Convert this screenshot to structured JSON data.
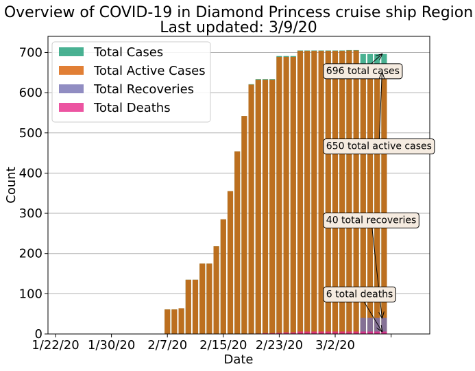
{
  "chart_data": {
    "type": "bar",
    "title": "Overview of COVID-19 in Diamond Princess cruise ship Region",
    "subtitle": "Last updated: 3/9/20",
    "xlabel": "Date",
    "ylabel": "Count",
    "ylim": [
      0,
      740
    ],
    "yticks": [
      0,
      100,
      200,
      300,
      400,
      500,
      600,
      700
    ],
    "grid": "horizontal",
    "legend_position": "top-left",
    "x_tick_labels": [
      "1/22/20",
      "1/30/20",
      "2/7/20",
      "2/15/20",
      "2/23/20",
      "3/2/20"
    ],
    "start_date": "1/22/20",
    "categories": [
      "1/22/20",
      "1/23/20",
      "1/24/20",
      "1/25/20",
      "1/26/20",
      "1/27/20",
      "1/28/20",
      "1/29/20",
      "1/30/20",
      "1/31/20",
      "2/1/20",
      "2/2/20",
      "2/3/20",
      "2/4/20",
      "2/5/20",
      "2/6/20",
      "2/7/20",
      "2/8/20",
      "2/9/20",
      "2/10/20",
      "2/11/20",
      "2/12/20",
      "2/13/20",
      "2/14/20",
      "2/15/20",
      "2/16/20",
      "2/17/20",
      "2/18/20",
      "2/19/20",
      "2/20/20",
      "2/21/20",
      "2/22/20",
      "2/23/20",
      "2/24/20",
      "2/25/20",
      "2/26/20",
      "2/27/20",
      "2/28/20",
      "2/29/20",
      "3/1/20",
      "3/2/20",
      "3/3/20",
      "3/4/20",
      "3/5/20",
      "3/6/20",
      "3/7/20",
      "3/8/20",
      "3/9/20"
    ],
    "series": [
      {
        "name": "Total Cases",
        "color": "#1b9e77",
        "values": [
          0,
          0,
          0,
          0,
          0,
          0,
          0,
          0,
          0,
          0,
          0,
          0,
          0,
          0,
          0,
          0,
          61,
          61,
          64,
          135,
          135,
          175,
          175,
          218,
          285,
          355,
          454,
          542,
          621,
          634,
          634,
          634,
          691,
          691,
          691,
          705,
          705,
          705,
          705,
          705,
          705,
          705,
          706,
          706,
          696,
          696,
          696,
          696
        ]
      },
      {
        "name": "Total Active Cases",
        "color": "#d95f02",
        "values": [
          0,
          0,
          0,
          0,
          0,
          0,
          0,
          0,
          0,
          0,
          0,
          0,
          0,
          0,
          0,
          0,
          61,
          61,
          64,
          135,
          135,
          175,
          175,
          218,
          285,
          355,
          454,
          542,
          620,
          632,
          632,
          632,
          689,
          689,
          689,
          704,
          704,
          704,
          704,
          704,
          704,
          704,
          705,
          705,
          652,
          652,
          652,
          650
        ]
      },
      {
        "name": "Total Recoveries",
        "color": "#7570b3",
        "values": [
          0,
          0,
          0,
          0,
          0,
          0,
          0,
          0,
          0,
          0,
          0,
          0,
          0,
          0,
          0,
          0,
          0,
          0,
          0,
          0,
          0,
          0,
          0,
          0,
          0,
          0,
          0,
          0,
          1,
          1,
          1,
          1,
          1,
          1,
          1,
          1,
          1,
          1,
          1,
          1,
          1,
          1,
          1,
          1,
          40,
          40,
          40,
          40
        ]
      },
      {
        "name": "Total Deaths",
        "color": "#e7298a",
        "values": [
          0,
          0,
          0,
          0,
          0,
          0,
          0,
          0,
          0,
          0,
          0,
          0,
          0,
          0,
          0,
          0,
          0,
          0,
          0,
          0,
          0,
          0,
          0,
          0,
          0,
          0,
          0,
          0,
          0,
          1,
          2,
          2,
          3,
          4,
          4,
          6,
          6,
          6,
          6,
          6,
          6,
          6,
          6,
          6,
          6,
          6,
          6,
          6
        ]
      }
    ],
    "annotations": [
      {
        "text": "696 total cases",
        "target_index": 47,
        "target_value": 696,
        "label_index": 39,
        "label_value": 655
      },
      {
        "text": "650 total active cases",
        "target_index": 47,
        "target_value": 650,
        "label_index": 39,
        "label_value": 468
      },
      {
        "text": "40 total recoveries",
        "target_index": 47,
        "target_value": 40,
        "label_index": 39,
        "label_value": 284
      },
      {
        "text": "6 total deaths",
        "target_index": 47,
        "target_value": 6,
        "label_index": 39,
        "label_value": 100
      }
    ]
  }
}
